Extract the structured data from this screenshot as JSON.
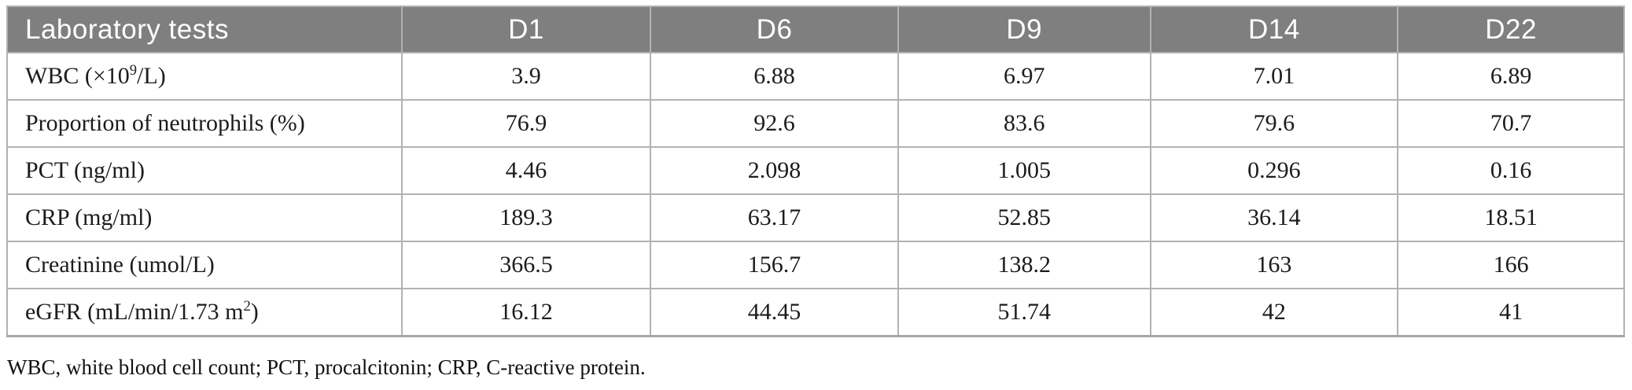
{
  "table": {
    "header": {
      "label_column": "Laboratory tests",
      "day_columns": [
        "D1",
        "D6",
        "D9",
        "D14",
        "D22"
      ]
    },
    "rows": [
      {
        "label": [
          {
            "t": "WBC (×10"
          },
          {
            "t": "9",
            "sup": true
          },
          {
            "t": "/L)"
          }
        ],
        "values": [
          "3.9",
          "6.88",
          "6.97",
          "7.01",
          "6.89"
        ]
      },
      {
        "label": [
          {
            "t": "Proportion of neutrophils (%)"
          }
        ],
        "values": [
          "76.9",
          "92.6",
          "83.6",
          "79.6",
          "70.7"
        ]
      },
      {
        "label": [
          {
            "t": "PCT (ng/ml)"
          }
        ],
        "values": [
          "4.46",
          "2.098",
          "1.005",
          "0.296",
          "0.16"
        ]
      },
      {
        "label": [
          {
            "t": "CRP (mg/ml)"
          }
        ],
        "values": [
          "189.3",
          "63.17",
          "52.85",
          "36.14",
          "18.51"
        ]
      },
      {
        "label": [
          {
            "t": "Creatinine (umol/L)"
          }
        ],
        "values": [
          "366.5",
          "156.7",
          "138.2",
          "163",
          "166"
        ]
      },
      {
        "label": [
          {
            "t": "eGFR (mL/min/1.73 m"
          },
          {
            "t": "2",
            "sup": true
          },
          {
            "t": ")"
          }
        ],
        "values": [
          "16.12",
          "44.45",
          "51.74",
          "42",
          "41"
        ]
      }
    ],
    "footnote": "WBC, white blood cell count; PCT, procalcitonin; CRP, C-reactive protein."
  },
  "colors": {
    "header_bg": "#7f7f7f",
    "header_text": "#ffffff",
    "border": "#b2b2b2",
    "body_text": "#1c1c1c"
  }
}
